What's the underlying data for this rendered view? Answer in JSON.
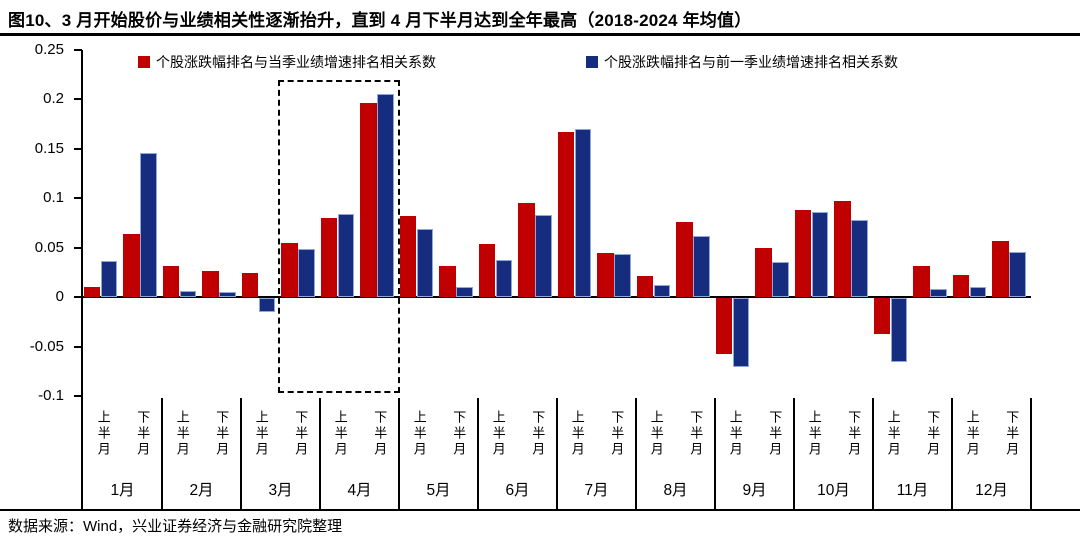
{
  "title": "图10、3 月开始股价与业绩相关性逐渐抬升，直到 4 月下半月达到全年最高（2018-2024 年均值）",
  "footer": {
    "source": "数据来源：Wind，兴业证券经济与金融研究院整理"
  },
  "chart_data": {
    "type": "bar",
    "title": "图10、3 月开始股价与业绩相关性逐渐抬升，直到 4 月下半月达到全年最高（2018-2024 年均值）",
    "months": [
      "1月",
      "2月",
      "3月",
      "4月",
      "5月",
      "6月",
      "7月",
      "8月",
      "9月",
      "10月",
      "11月",
      "12月"
    ],
    "half_labels": [
      "上半月",
      "下半月"
    ],
    "yticks": [
      "0.25",
      "0.2",
      "0.15",
      "0.1",
      "0.05",
      "0",
      "-0.05",
      "-0.1"
    ],
    "ylim": [
      -0.1,
      0.25
    ],
    "grid": "off",
    "legend_position": "top",
    "series": [
      {
        "name": "个股涨跌幅排名与当季业绩增速排名相关系数",
        "color": "#C00000",
        "values": [
          0.01,
          0.064,
          0.032,
          0.026,
          0.024,
          0.055,
          0.08,
          0.196,
          0.082,
          0.032,
          0.054,
          0.095,
          0.167,
          0.045,
          0.021,
          0.076,
          -0.056,
          0.05,
          0.088,
          0.097,
          -0.036,
          0.031,
          0.022,
          0.057
        ]
      },
      {
        "name": "个股涨跌幅排名与前一季业绩增速排名相关系数",
        "color": "#152C7F",
        "values": [
          0.037,
          0.146,
          0.006,
          0.005,
          -0.014,
          0.049,
          0.084,
          0.205,
          0.069,
          0.01,
          0.038,
          0.083,
          0.17,
          0.044,
          0.012,
          0.062,
          -0.07,
          0.036,
          0.086,
          0.078,
          -0.065,
          0.008,
          0.01,
          0.046
        ]
      }
    ],
    "highlight_box": {
      "start_half_index": 5,
      "end_half_index": 7
    }
  }
}
